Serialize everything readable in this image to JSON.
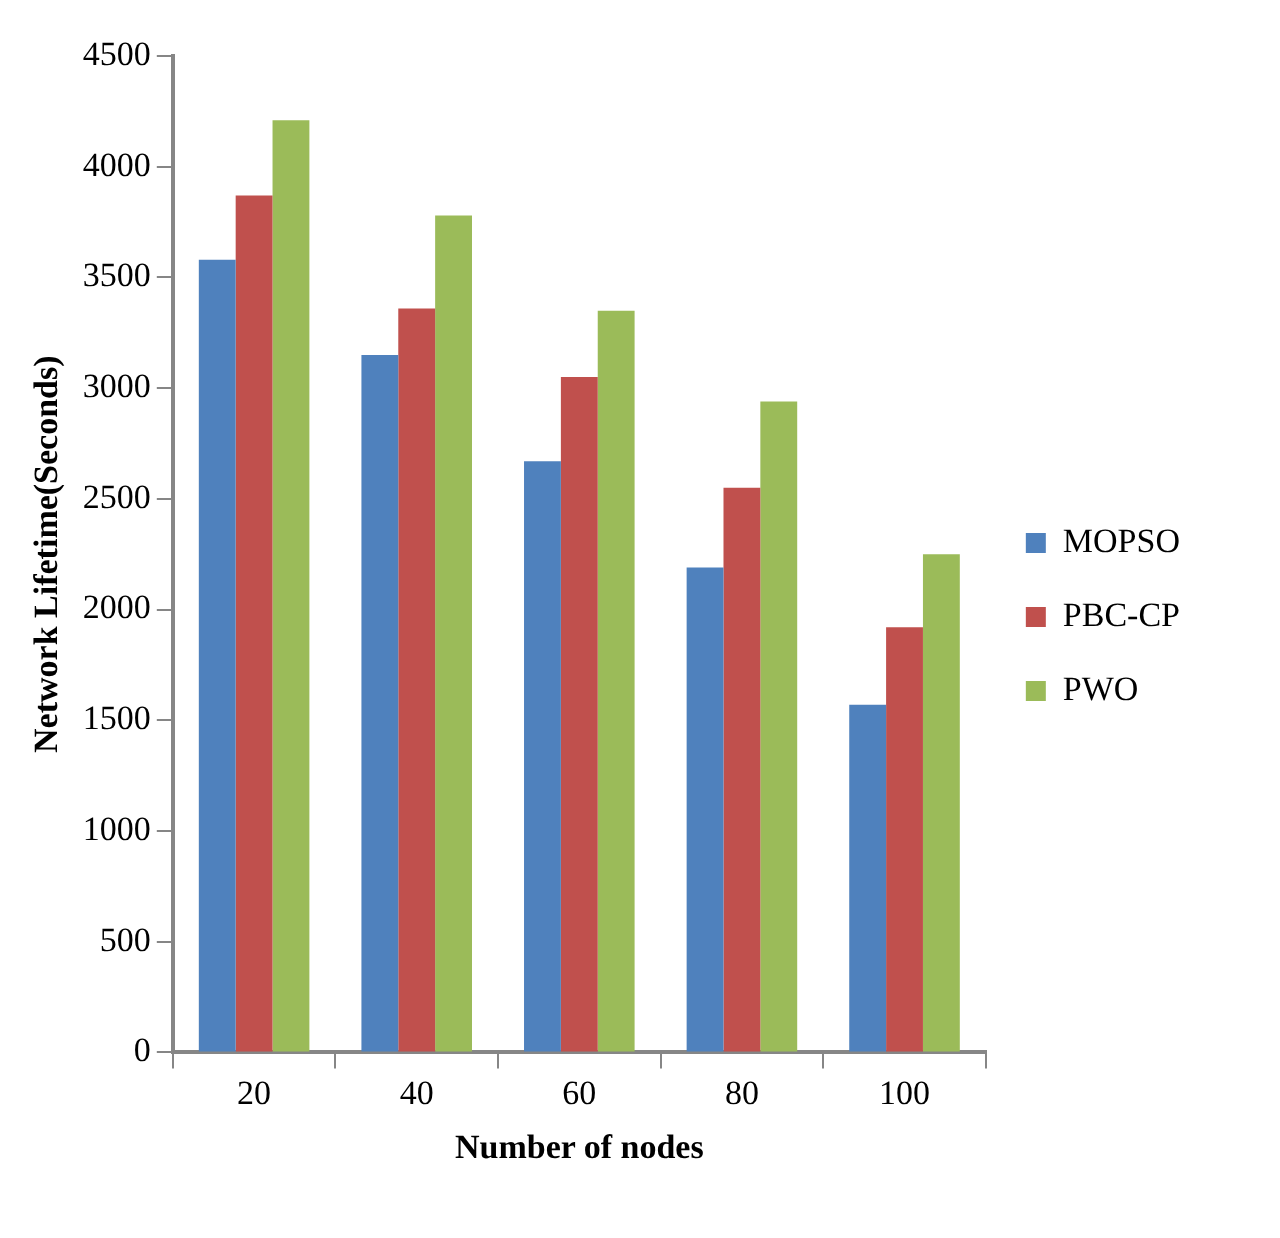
{
  "chart_data": {
    "type": "bar",
    "xlabel": "Number of nodes",
    "ylabel": "Network Lifetime(Seconds)",
    "categories": [
      "20",
      "40",
      "60",
      "80",
      "100"
    ],
    "series": [
      {
        "name": "MOPSO",
        "color": "#4f81bd",
        "values": [
          3580,
          3150,
          2670,
          2190,
          1570
        ]
      },
      {
        "name": "PBC-CP",
        "color": "#c0504d",
        "values": [
          3870,
          3360,
          3050,
          2550,
          1920
        ]
      },
      {
        "name": "PWO",
        "color": "#9bbb59",
        "values": [
          4210,
          3780,
          3350,
          2940,
          2250
        ]
      }
    ],
    "ylim": [
      0,
      4500
    ],
    "yticks": [
      0,
      500,
      1000,
      1500,
      2000,
      2500,
      3000,
      3500,
      4000,
      4500
    ],
    "grid": false,
    "legend": "right"
  }
}
